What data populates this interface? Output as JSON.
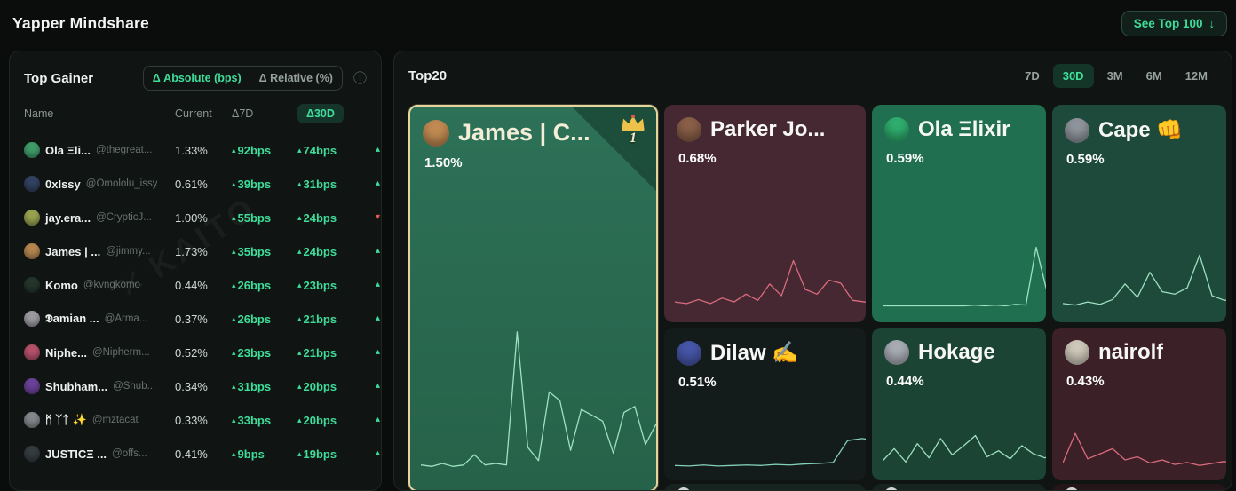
{
  "header": {
    "title": "Yapper Mindshare",
    "see_top": {
      "label": "See Top 100",
      "icon": "↓"
    }
  },
  "colors": {
    "accent_green": "#3fdd9a",
    "negative_red": "#e5584f",
    "page_bg": "#0a0d0c",
    "panel_bg": "#101513",
    "selected_border": "#e5d49c"
  },
  "top_gainer": {
    "title": "Top Gainer",
    "toggles": [
      {
        "label": "Δ Absolute (bps)",
        "active": true
      },
      {
        "label": "Δ Relative (%)",
        "active": false
      }
    ],
    "info_icon": "ⓘ",
    "logo_glyph": "✕",
    "watermark": "KAITO",
    "columns": [
      "Name",
      "Current",
      "Δ7D",
      "Δ30D"
    ],
    "rows": [
      {
        "name": "Ola Ξli...",
        "handle": "@thegreat...",
        "current": "1.33%",
        "d7": "92bps",
        "d30": "74bps",
        "next_dir": "up",
        "avatar": "#3f9b68"
      },
      {
        "name": "0xIssy",
        "handle": "@Omololu_issy",
        "current": "0.61%",
        "d7": "39bps",
        "d30": "31bps",
        "next_dir": "up",
        "avatar": "#32415f"
      },
      {
        "name": "jay.era...",
        "handle": "@CrypticJ...",
        "current": "1.00%",
        "d7": "55bps",
        "d30": "24bps",
        "next_dir": "down",
        "avatar": "#97a14f"
      },
      {
        "name": "James | ...",
        "handle": "@jimmy...",
        "current": "1.73%",
        "d7": "35bps",
        "d30": "24bps",
        "next_dir": "up",
        "avatar": "#b5854f"
      },
      {
        "name": "Komo",
        "handle": "@kvngkomo",
        "current": "0.44%",
        "d7": "26bps",
        "d30": "23bps",
        "next_dir": "up",
        "avatar": "#24352c"
      },
      {
        "name": "𝕯amian ...",
        "handle": "@Arma...",
        "current": "0.37%",
        "d7": "26bps",
        "d30": "21bps",
        "next_dir": "up",
        "avatar": "#9a9aa0"
      },
      {
        "name": "Niphe...",
        "handle": "@Nipherm...",
        "current": "0.52%",
        "d7": "23bps",
        "d30": "21bps",
        "next_dir": "up",
        "avatar": "#b3506a"
      },
      {
        "name": "Shubham...",
        "handle": "@Shub...",
        "current": "0.34%",
        "d7": "31bps",
        "d30": "20bps",
        "next_dir": "up",
        "avatar": "#6a4098"
      },
      {
        "name": "ᛗ ᛉᛏ ✨",
        "handle": "@mztacat",
        "current": "0.33%",
        "d7": "33bps",
        "d30": "20bps",
        "next_dir": "up",
        "avatar": "#83868b"
      },
      {
        "name": "JUSTICΞ ...",
        "handle": "@offs...",
        "current": "0.41%",
        "d7": "9bps",
        "d30": "19bps",
        "next_dir": "up",
        "avatar": "#343c40"
      }
    ]
  },
  "top20": {
    "title": "Top20",
    "tabs": [
      "7D",
      "30D",
      "3M",
      "6M",
      "12M"
    ],
    "active_tab": "30D",
    "cards": [
      {
        "rank": "1",
        "selected": true,
        "name": "James | C...",
        "value": "1.50%",
        "bg": "linear-gradient(180deg,#2d7158,#266249)",
        "accent": "#a9eccb",
        "text": "#f4eed8",
        "avatar": "#c08a52",
        "spark": [
          6,
          5,
          7,
          5,
          6,
          13,
          6,
          7,
          6,
          97,
          18,
          9,
          56,
          50,
          16,
          44,
          40,
          36,
          14,
          42,
          46,
          20,
          34,
          37
        ]
      },
      {
        "name": "Parker Jo...",
        "value": "0.68%",
        "bg": "#452832",
        "accent": "#e77285",
        "avatar": "#8a5f48",
        "spark": [
          12,
          10,
          15,
          10,
          17,
          12,
          22,
          14,
          35,
          20,
          65,
          28,
          22,
          40,
          36,
          14,
          12,
          10
        ]
      },
      {
        "name": "Ola Ξlixir",
        "value": "0.59%",
        "bg": "#1f6f50",
        "accent": "#a9eccb",
        "avatar": "#2fae6e",
        "spark": [
          7,
          7,
          7,
          7,
          7,
          7,
          7,
          7,
          7,
          8,
          7,
          8,
          7,
          9,
          8,
          82,
          28,
          95
        ]
      },
      {
        "name": "Cape 👊",
        "value": "0.59%",
        "bg": "#1d4a3a",
        "accent": "#a9eccb",
        "avatar": "#8f959c",
        "spark": [
          10,
          8,
          12,
          9,
          15,
          35,
          18,
          50,
          25,
          22,
          30,
          72,
          20,
          14,
          16
        ]
      },
      {
        "name": "Dilaw ✍️",
        "value": "0.51%",
        "bg": "#131c1a",
        "accent": "#8fe0c8",
        "avatar": "#4656a8",
        "spark": [
          9,
          8,
          10,
          8,
          9,
          10,
          9,
          11,
          10,
          12,
          13,
          15,
          58,
          62,
          58
        ]
      },
      {
        "name": "Hokage",
        "value": "0.44%",
        "bg": "#1b4434",
        "accent": "#a9eccb",
        "avatar": "#a8adb4",
        "spark": [
          18,
          42,
          16,
          52,
          24,
          62,
          30,
          48,
          68,
          26,
          38,
          22,
          48,
          32,
          24,
          34
        ]
      },
      {
        "name": "nairolf",
        "value": "0.43%",
        "bg": "#3b2028",
        "accent": "#e77285",
        "avatar": "#cfc9bb",
        "spark": [
          14,
          72,
          22,
          32,
          42,
          20,
          26,
          14,
          20,
          11,
          15,
          9,
          13,
          17,
          11
        ]
      }
    ],
    "partial_cards": [
      "#16231f",
      "#16231f",
      "#241519"
    ]
  }
}
